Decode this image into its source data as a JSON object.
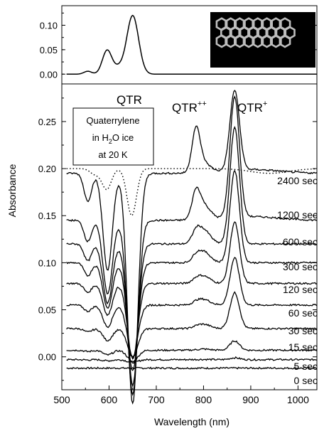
{
  "chart_data": [
    {
      "type": "line",
      "panel": "top",
      "ylim": [
        -0.02,
        0.14
      ],
      "xlim": [
        500,
        1040
      ],
      "yticks": [
        0.0,
        0.05,
        0.1
      ],
      "ytick_labels": [
        "0.00",
        "0.05",
        "0.10"
      ],
      "series": [
        {
          "x": [
            510,
            530,
            545,
            555,
            565,
            575,
            585,
            595,
            605,
            615,
            625,
            635,
            645,
            650,
            655,
            665,
            675,
            690,
            710,
            750,
            800,
            850,
            900,
            950,
            1000,
            1040
          ],
          "y": [
            0.0,
            0.003,
            0.008,
            0.012,
            0.02,
            0.033,
            0.045,
            0.05,
            0.04,
            0.035,
            0.05,
            0.085,
            0.116,
            0.12,
            0.112,
            0.06,
            0.015,
            0.004,
            0.003,
            0.002,
            0.001,
            0.001,
            0.0,
            0.0,
            0.0,
            0.0
          ]
        }
      ],
      "inset": "molecular structure image"
    },
    {
      "type": "line",
      "panel": "bottom",
      "xlabel": "Wavelength (nm)",
      "ylabel": "Absorbance",
      "xlim": [
        500,
        1040
      ],
      "ylim": [
        -0.035,
        0.29
      ],
      "xticks": [
        500,
        600,
        700,
        800,
        900,
        1000
      ],
      "xtick_labels": [
        "500",
        "600",
        "700",
        "800",
        "900",
        "1000"
      ],
      "yticks": [
        0.0,
        0.05,
        0.1,
        0.15,
        0.2,
        0.25
      ],
      "ytick_labels": [
        "0.00",
        "0.05",
        "0.10",
        "0.15",
        "0.20",
        "0.25"
      ],
      "annotations": {
        "qtr": "QTR",
        "qtr2": "QTR",
        "qtr2_sup": "++",
        "qtr1": "QTR",
        "qtr1_sup": "+",
        "box_line1": "Quaterrylene",
        "box_line2_pre": "in H",
        "box_line2_sub": "2",
        "box_line2_post": "O ice",
        "box_line3": "at 20 K"
      },
      "series": [
        {
          "name": "0 sec",
          "baseline": -0.012,
          "neutral": 0.0,
          "cation": 0.0,
          "dication": 0.0
        },
        {
          "name": "5 sec",
          "baseline": -0.003,
          "neutral": 0.003,
          "cation": 0.002,
          "dication": 0.0
        },
        {
          "name": "15 sec",
          "baseline": 0.007,
          "neutral": 0.012,
          "cation": 0.01,
          "dication": 0.0
        },
        {
          "name": "30 sec",
          "baseline": 0.03,
          "neutral": 0.03,
          "cation": 0.038,
          "dication": 0.001
        },
        {
          "name": "60 sec",
          "baseline": 0.055,
          "neutral": 0.055,
          "cation": 0.05,
          "dication": 0.002
        },
        {
          "name": "120 sec",
          "baseline": 0.078,
          "neutral": 0.08,
          "cation": 0.065,
          "dication": 0.003
        },
        {
          "name": "300 sec",
          "baseline": 0.1,
          "neutral": 0.115,
          "cation": 0.098,
          "dication": 0.005
        },
        {
          "name": "600 sec",
          "baseline": 0.12,
          "neutral": 0.15,
          "cation": 0.124,
          "dication": 0.01
        },
        {
          "name": "1200 sec",
          "baseline": 0.145,
          "neutral": 0.185,
          "cation": 0.128,
          "dication": 0.026
        },
        {
          "name": "2400 sec",
          "baseline": 0.195,
          "neutral": 0.245,
          "cation": 0.085,
          "dication": 0.044
        }
      ],
      "reference_dotted": {
        "x": [
          510,
          540,
          570,
          590,
          600,
          610,
          625,
          640,
          650,
          660,
          675,
          700,
          750,
          800,
          850,
          900,
          950,
          1000,
          1040
        ],
        "y": [
          0.198,
          0.197,
          0.19,
          0.176,
          0.182,
          0.178,
          0.165,
          0.152,
          0.17,
          0.19,
          0.198,
          0.2,
          0.2,
          0.2,
          0.2,
          0.197,
          0.195,
          0.195,
          0.195
        ]
      }
    }
  ]
}
